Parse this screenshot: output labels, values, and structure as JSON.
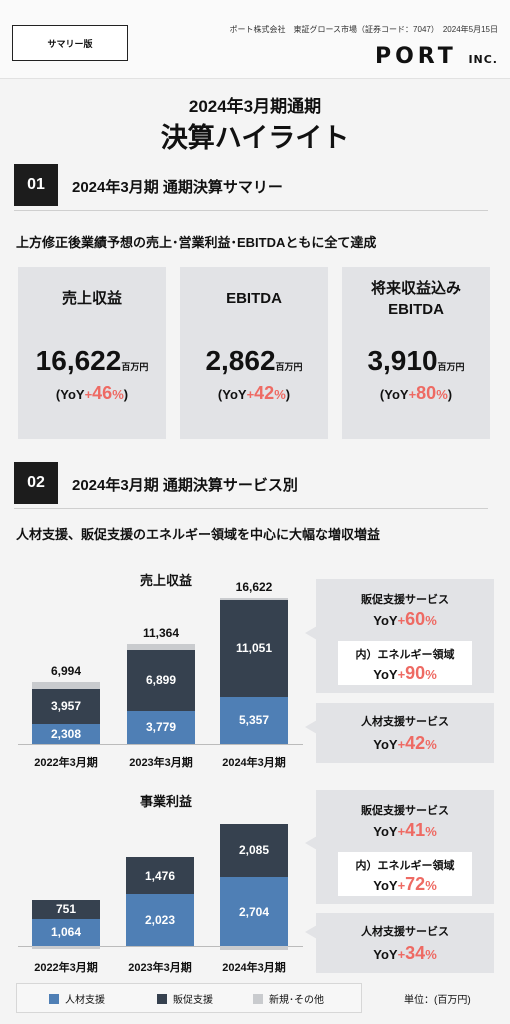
{
  "header": {
    "badge": "サマリー版",
    "company_line": "ポート株式会社　東証グロース市場（証券コード：7047）　2024年5月15日",
    "logo_main": "PORT",
    "logo_sub": "INC."
  },
  "title": {
    "line1": "2024年3月期通期",
    "line2": "決算ハイライト"
  },
  "section1": {
    "number": "01",
    "title": "2024年3月期  通期決算サマリー",
    "headline": "上方修正後業績予想の売上･営業利益･EBITDAともに全て達成",
    "cards": [
      {
        "label": "売上収益",
        "value": "16,622",
        "unit": "百万円",
        "yoy_prefix": "(YoY",
        "yoy_sign": "+",
        "yoy_value": "46",
        "yoy_pct": "%",
        "yoy_suffix": ")"
      },
      {
        "label": "EBITDA",
        "value": "2,862",
        "unit": "百万円",
        "yoy_prefix": "(YoY",
        "yoy_sign": "+",
        "yoy_value": "42",
        "yoy_pct": "%",
        "yoy_suffix": ")"
      },
      {
        "label_line1": "将来収益込み",
        "label_line2": "EBITDA",
        "value": "3,910",
        "unit": "百万円",
        "yoy_prefix": "(YoY",
        "yoy_sign": "+",
        "yoy_value": "80",
        "yoy_pct": "%",
        "yoy_suffix": ")"
      }
    ]
  },
  "section2": {
    "number": "02",
    "title": "2024年3月期  通期決算サービス別",
    "headline": "人材支援、販促支援のエネルギー領域を中心に大幅な増収増益"
  },
  "chart_data": [
    {
      "type": "bar",
      "title": "売上収益",
      "stacked": true,
      "categories": [
        "2022年3月期",
        "2023年3月期",
        "2024年3月期"
      ],
      "series": [
        {
          "name": "人材支援",
          "values": [
            2308,
            3779,
            5357
          ]
        },
        {
          "name": "販促支援",
          "values": [
            3957,
            6899,
            11051
          ]
        },
        {
          "name": "新規･その他",
          "values": [
            729,
            686,
            214
          ]
        }
      ],
      "totals": [
        6994,
        11364,
        16622
      ],
      "labels": {
        "blue": [
          "2,308",
          "3,779",
          "5,357"
        ],
        "navy": [
          "3,957",
          "6,899",
          "11,051"
        ],
        "totals": [
          "6,994",
          "11,364",
          "16,622"
        ]
      }
    },
    {
      "type": "bar",
      "title": "事業利益",
      "stacked": true,
      "categories": [
        "2022年3月期",
        "2023年3月期",
        "2024年3月期"
      ],
      "series": [
        {
          "name": "人材支援",
          "values": [
            1064,
            2023,
            2704
          ]
        },
        {
          "name": "販促支援",
          "values": [
            751,
            1476,
            2085
          ]
        },
        {
          "name": "新規･その他",
          "values": [
            -80,
            0,
            -150
          ]
        }
      ],
      "labels": {
        "blue": [
          "1,064",
          "2,023",
          "2,704"
        ],
        "navy": [
          "751",
          "1,476",
          "2,085"
        ]
      }
    }
  ],
  "callouts": {
    "sales": [
      {
        "name": "販促支援サービス",
        "yoy_prefix": "YoY",
        "yoy_sign": "+",
        "yoy_value": "60",
        "yoy_pct": "%"
      },
      {
        "name": "内）エネルギー領域",
        "yoy_prefix": "YoY",
        "yoy_sign": "+",
        "yoy_value": "90",
        "yoy_pct": "%"
      },
      {
        "name": "人材支援サービス",
        "yoy_prefix": "YoY",
        "yoy_sign": "+",
        "yoy_value": "42",
        "yoy_pct": "%"
      }
    ],
    "profit": [
      {
        "name": "販促支援サービス",
        "yoy_prefix": "YoY",
        "yoy_sign": "+",
        "yoy_value": "41",
        "yoy_pct": "%"
      },
      {
        "name": "内）エネルギー領域",
        "yoy_prefix": "YoY",
        "yoy_sign": "+",
        "yoy_value": "72",
        "yoy_pct": "%"
      },
      {
        "name": "人材支援サービス",
        "yoy_prefix": "YoY",
        "yoy_sign": "+",
        "yoy_value": "34",
        "yoy_pct": "%"
      }
    ]
  },
  "legend": [
    {
      "label": "人材支援",
      "color": "#4f7fb5"
    },
    {
      "label": "販促支援",
      "color": "#36414f"
    },
    {
      "label": "新規･その他",
      "color": "#c9cbce"
    }
  ],
  "unit_note": "単位：(百万円)",
  "colors": {
    "accent_red": "#ee6a63",
    "blue": "#4f7fb5",
    "navy": "#36414f",
    "gray": "#c9cbce"
  }
}
